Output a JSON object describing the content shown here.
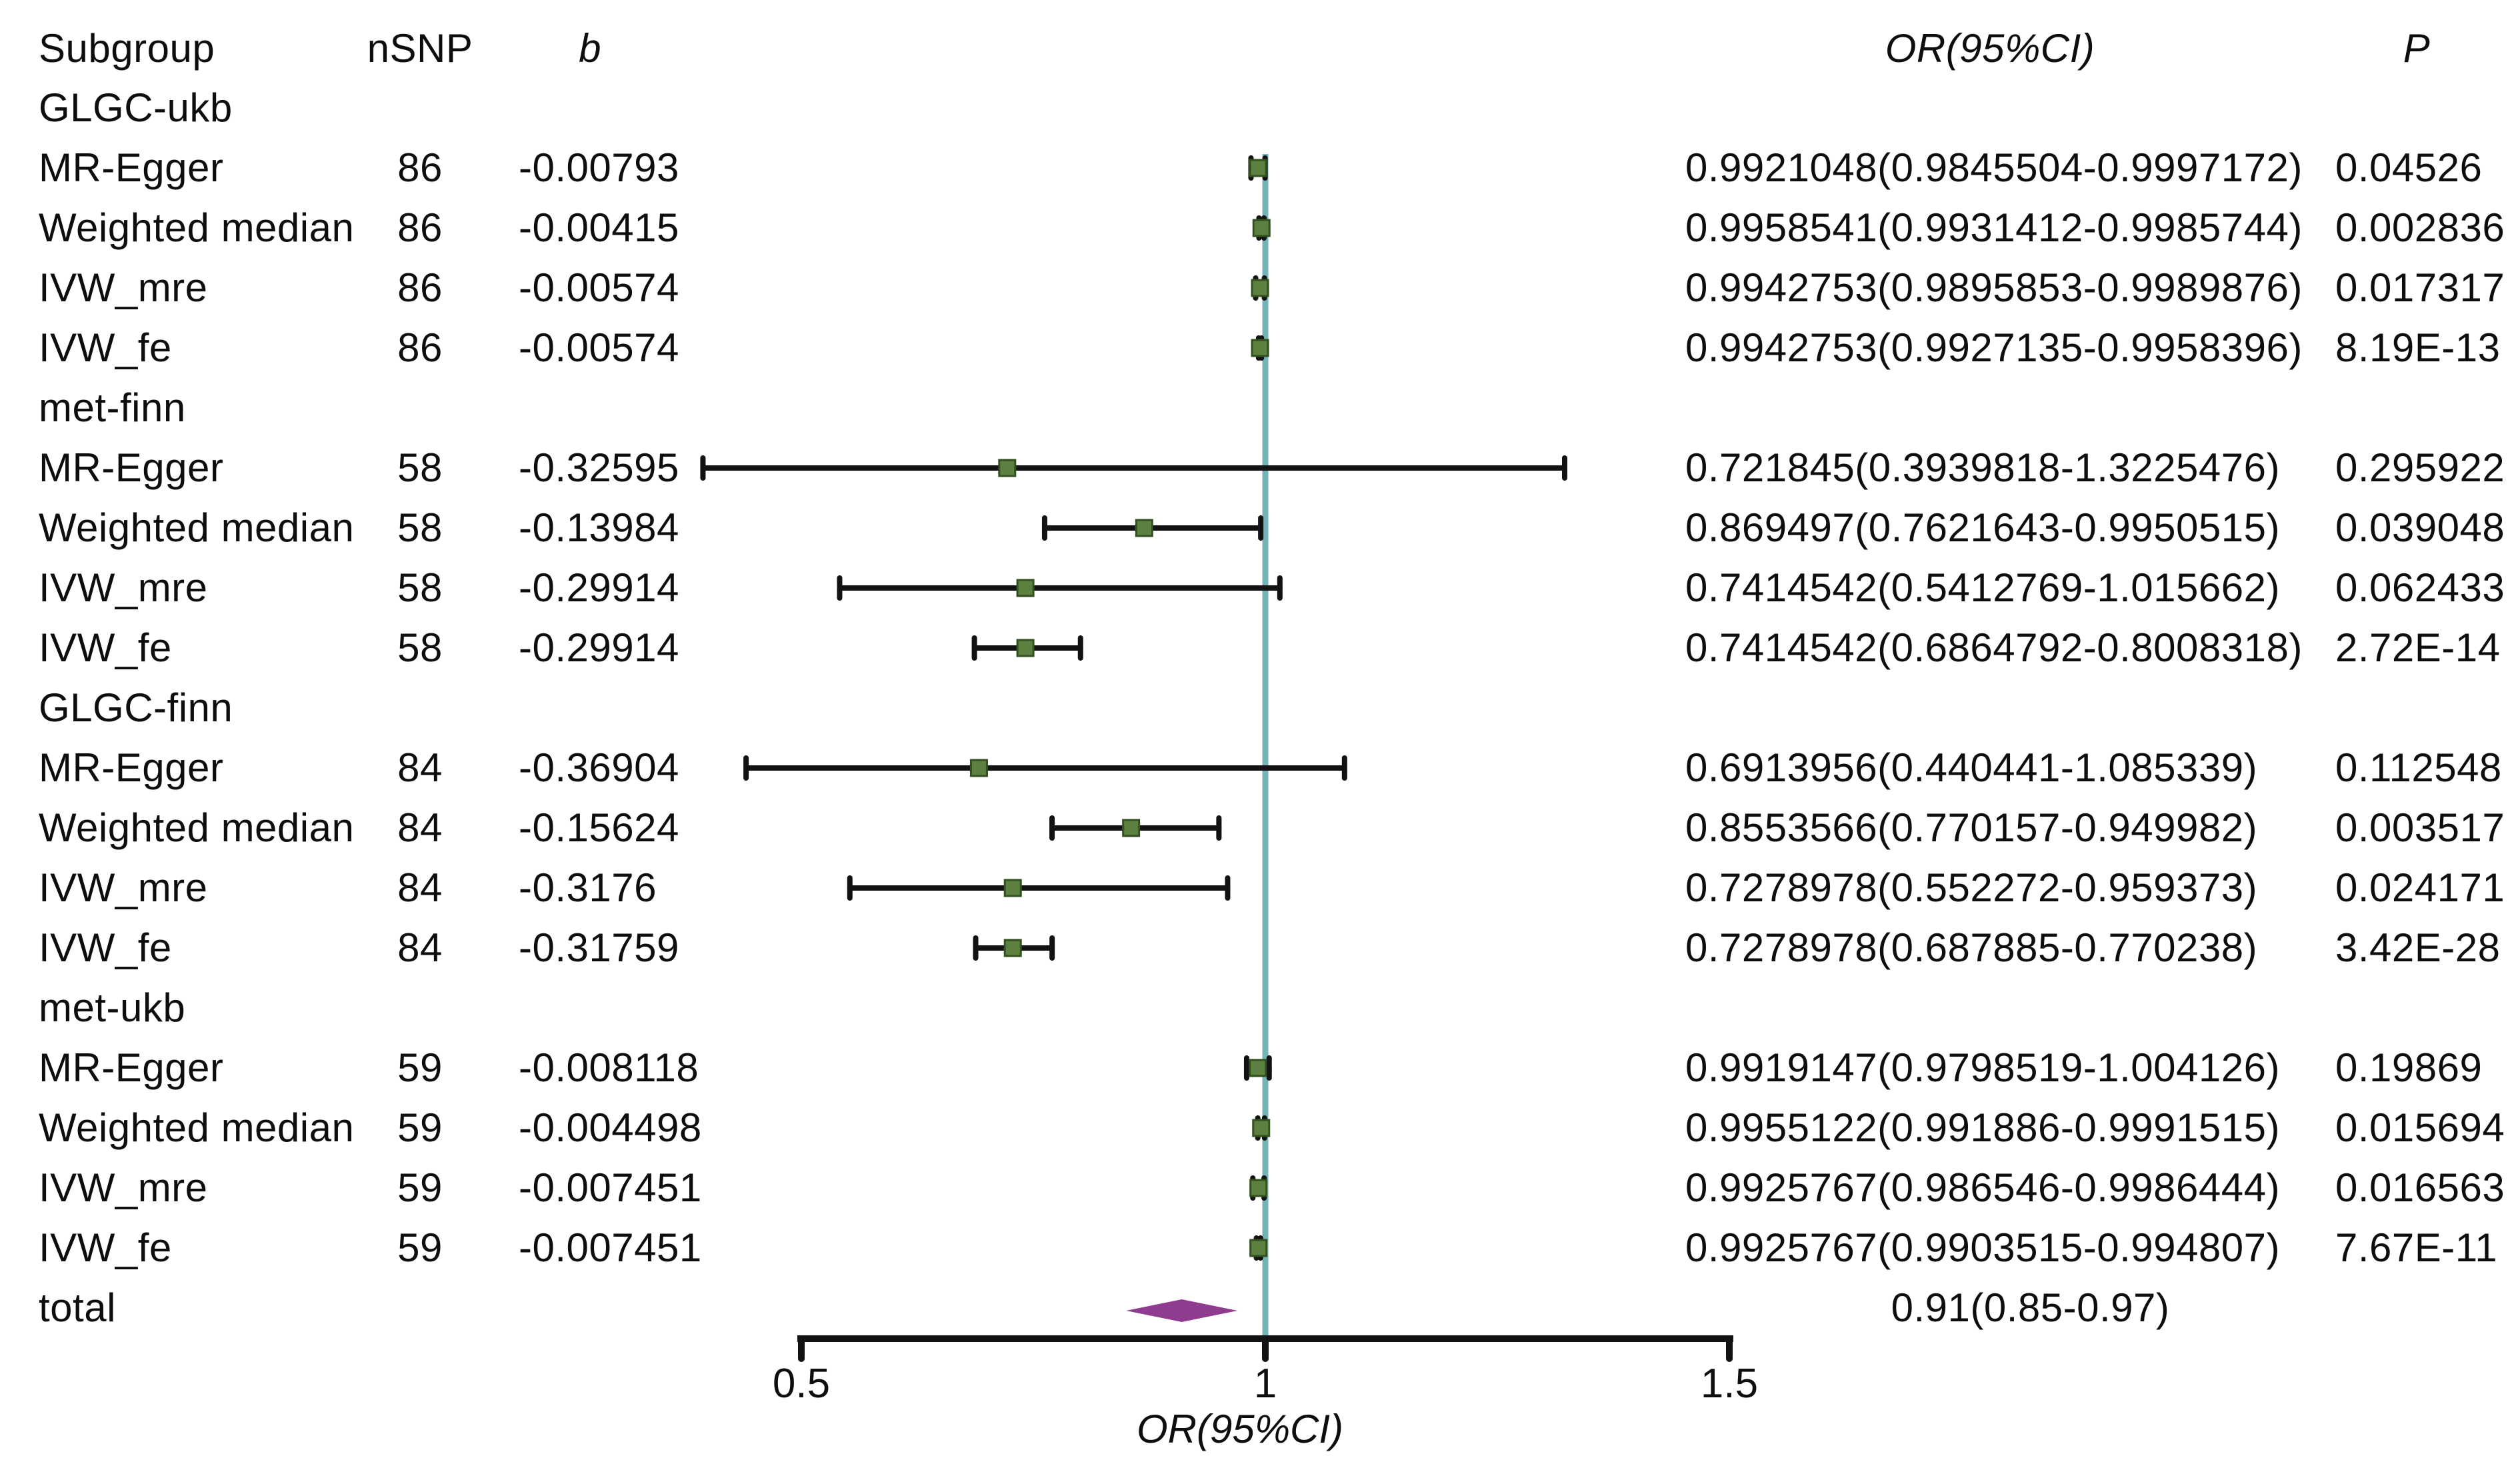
{
  "chart_data": {
    "type": "forest",
    "columns": {
      "subgroup": "Subgroup",
      "nsnp": "nSNP",
      "b": "b",
      "or": "OR(95%CI)",
      "p": "P"
    },
    "x_axis": {
      "label": "OR(95%CI)",
      "ticks": [
        0.5,
        1,
        1.5
      ],
      "tick_labels": [
        "0.5",
        "1",
        "1.5"
      ],
      "range": [
        0.5,
        1.5
      ],
      "ref_line": 1
    },
    "colors": {
      "ref_line": "#74b4b8",
      "marker_fill": "#5c8040",
      "marker_border": "#33511f",
      "ci_line": "#121212",
      "diamond": "#8e3b90",
      "axis": "#121212",
      "text": "#000000"
    },
    "rows": [
      {
        "kind": "group",
        "label": "GLGC-ukb"
      },
      {
        "kind": "method",
        "label": "MR-Egger",
        "nsnp": "86",
        "b": "-0.00793",
        "est": 0.9921048,
        "lo": 0.9845504,
        "hi": 0.9997172,
        "or_text": "0.9921048(0.9845504-0.9997172)",
        "p": "0.04526"
      },
      {
        "kind": "method",
        "label": "Weighted median",
        "nsnp": "86",
        "b": "-0.00415",
        "est": 0.9958541,
        "lo": 0.9931412,
        "hi": 0.9985744,
        "or_text": "0.9958541(0.9931412-0.9985744)",
        "p": "0.002836"
      },
      {
        "kind": "method",
        "label": "IVW_mre",
        "nsnp": "86",
        "b": "-0.00574",
        "est": 0.9942753,
        "lo": 0.9895853,
        "hi": 0.9989876,
        "or_text": "0.9942753(0.9895853-0.9989876)",
        "p": "0.017317"
      },
      {
        "kind": "method",
        "label": "IVW_fe",
        "nsnp": "86",
        "b": "-0.00574",
        "est": 0.9942753,
        "lo": 0.9927135,
        "hi": 0.9958396,
        "or_text": "0.9942753(0.9927135-0.9958396)",
        "p": "8.19E-13"
      },
      {
        "kind": "group",
        "label": "met-finn"
      },
      {
        "kind": "method",
        "label": "MR-Egger",
        "nsnp": "58",
        "b": "-0.32595",
        "est": 0.721845,
        "lo": 0.3939818,
        "hi": 1.3225476,
        "or_text": "0.721845(0.3939818-1.3225476)",
        "p": "0.295922"
      },
      {
        "kind": "method",
        "label": "Weighted median",
        "nsnp": "58",
        "b": "-0.13984",
        "est": 0.869497,
        "lo": 0.7621643,
        "hi": 0.9950515,
        "or_text": "0.869497(0.7621643-0.9950515)",
        "p": "0.039048"
      },
      {
        "kind": "method",
        "label": "IVW_mre",
        "nsnp": "58",
        "b": "-0.29914",
        "est": 0.7414542,
        "lo": 0.5412769,
        "hi": 1.015662,
        "or_text": "0.7414542(0.5412769-1.015662)",
        "p": "0.062433"
      },
      {
        "kind": "method",
        "label": "IVW_fe",
        "nsnp": "58",
        "b": "-0.29914",
        "est": 0.7414542,
        "lo": 0.6864792,
        "hi": 0.8008318,
        "or_text": "0.7414542(0.6864792-0.8008318)",
        "p": "2.72E-14"
      },
      {
        "kind": "group",
        "label": "GLGC-finn"
      },
      {
        "kind": "method",
        "label": "MR-Egger",
        "nsnp": "84",
        "b": "-0.36904",
        "est": 0.6913956,
        "lo": 0.440441,
        "hi": 1.085339,
        "or_text": "0.6913956(0.440441-1.085339)",
        "p": "0.112548"
      },
      {
        "kind": "method",
        "label": "Weighted median",
        "nsnp": "84",
        "b": "-0.15624",
        "est": 0.8553566,
        "lo": 0.770157,
        "hi": 0.949982,
        "or_text": "0.8553566(0.770157-0.949982)",
        "p": "0.003517"
      },
      {
        "kind": "method",
        "label": "IVW_mre",
        "nsnp": "84",
        "b": "-0.3176",
        "est": 0.7278978,
        "lo": 0.552272,
        "hi": 0.959373,
        "or_text": "0.7278978(0.552272-0.959373)",
        "p": "0.024171"
      },
      {
        "kind": "method",
        "label": "IVW_fe",
        "nsnp": "84",
        "b": "-0.31759",
        "est": 0.7278978,
        "lo": 0.687885,
        "hi": 0.770238,
        "or_text": "0.7278978(0.687885-0.770238)",
        "p": "3.42E-28"
      },
      {
        "kind": "group",
        "label": "met-ukb"
      },
      {
        "kind": "method",
        "label": "MR-Egger",
        "nsnp": "59",
        "b": "-0.008118",
        "est": 0.9919147,
        "lo": 0.9798519,
        "hi": 1.004126,
        "or_text": "0.9919147(0.9798519-1.004126)",
        "p": "0.19869"
      },
      {
        "kind": "method",
        "label": "Weighted median",
        "nsnp": "59",
        "b": "-0.004498",
        "est": 0.9955122,
        "lo": 0.991886,
        "hi": 0.9991515,
        "or_text": "0.9955122(0.991886-0.9991515)",
        "p": "0.015694"
      },
      {
        "kind": "method",
        "label": "IVW_mre",
        "nsnp": "59",
        "b": "-0.007451",
        "est": 0.9925767,
        "lo": 0.986546,
        "hi": 0.9986444,
        "or_text": "0.9925767(0.986546-0.9986444)",
        "p": "0.016563"
      },
      {
        "kind": "method",
        "label": "IVW_fe",
        "nsnp": "59",
        "b": "-0.007451",
        "est": 0.9925767,
        "lo": 0.9903515,
        "hi": 0.994807,
        "or_text": "0.9925767(0.9903515-0.994807)",
        "p": "7.67E-11"
      },
      {
        "kind": "summary",
        "label": "total",
        "est": 0.91,
        "lo": 0.85,
        "hi": 0.97,
        "or_text": "0.91(0.85-0.97)"
      }
    ]
  }
}
